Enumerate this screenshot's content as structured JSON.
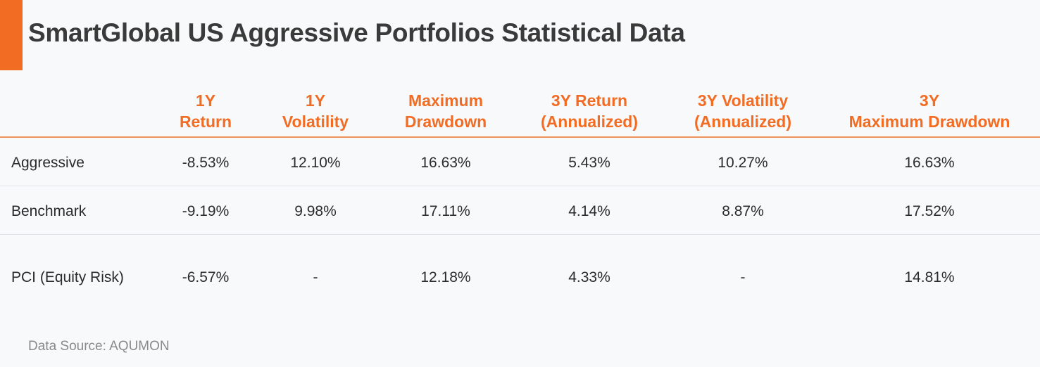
{
  "title": "SmartGlobal US Aggressive Portfolios Statistical Data",
  "source": "Data Source: AQUMON",
  "colors": {
    "accent": "#f26c24",
    "header_text": "#f26c24",
    "body_text": "#2b2b2b",
    "background": "#f7f9fa"
  },
  "chart_data": {
    "type": "table",
    "title": "SmartGlobal US Aggressive Portfolios Statistical Data",
    "columns": [
      {
        "line1": "1Y",
        "line2": "Return"
      },
      {
        "line1": "1Y",
        "line2": "Volatility"
      },
      {
        "line1": "Maximum",
        "line2": "Drawdown"
      },
      {
        "line1": "3Y Return",
        "line2": "(Annualized)"
      },
      {
        "line1": "3Y Volatility",
        "line2": "(Annualized)"
      },
      {
        "line1": "3Y",
        "line2": "Maximum Drawdown"
      }
    ],
    "rows": [
      {
        "label": "Aggressive",
        "values": [
          "-8.53%",
          "12.10%",
          "16.63%",
          "5.43%",
          "10.27%",
          "16.63%"
        ]
      },
      {
        "label": "Benchmark",
        "values": [
          "-9.19%",
          "9.98%",
          "17.11%",
          "4.14%",
          "8.87%",
          "17.52%"
        ]
      },
      {
        "label": "PCI (Equity Risk)",
        "values": [
          "-6.57%",
          "-",
          "12.18%",
          "4.33%",
          "-",
          "14.81%"
        ]
      }
    ]
  }
}
